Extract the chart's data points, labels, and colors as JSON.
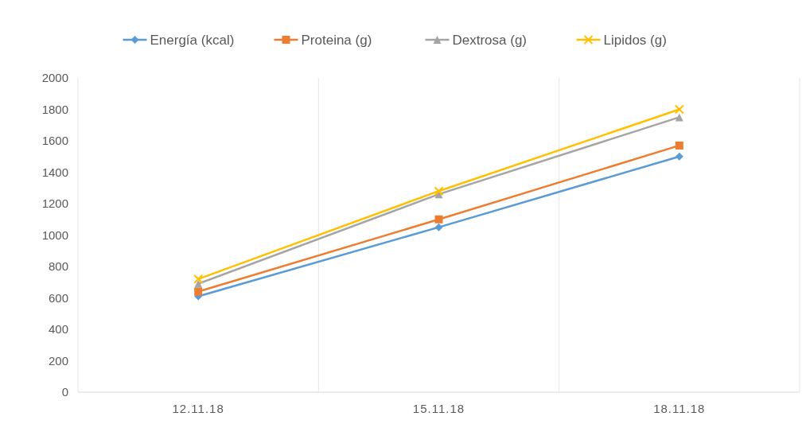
{
  "chart_data": {
    "type": "line",
    "categories": [
      "12.11.18",
      "15.11.18",
      "18.11.18"
    ],
    "series": [
      {
        "name": "Energía (kcal)",
        "color": "#5b9bd5",
        "marker": "diamond",
        "values": [
          610,
          1050,
          1500
        ]
      },
      {
        "name": "Proteina (g)",
        "color": "#ed7d31",
        "marker": "square",
        "values": [
          640,
          1100,
          1570
        ]
      },
      {
        "name": "Dextrosa (g)",
        "color": "#a5a5a5",
        "marker": "triangle",
        "values": [
          690,
          1260,
          1750
        ]
      },
      {
        "name": "Lipidos (g)",
        "color": "#ffc000",
        "marker": "cross",
        "values": [
          720,
          1280,
          1800
        ]
      }
    ],
    "ylim": [
      0,
      2000
    ],
    "yticks": [
      0,
      200,
      400,
      600,
      800,
      1000,
      1200,
      1400,
      1600,
      1800,
      2000
    ],
    "grid": "x",
    "legend": "top"
  }
}
